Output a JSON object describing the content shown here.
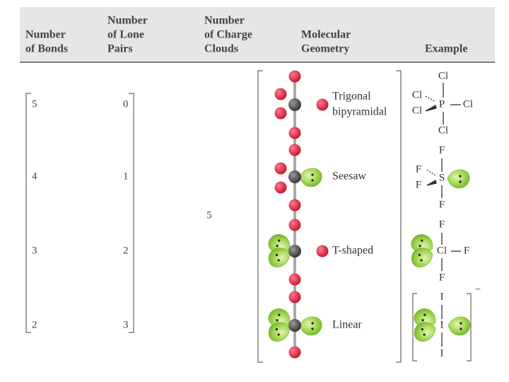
{
  "header": {
    "columns": [
      [
        "Number",
        "of Bonds"
      ],
      [
        "Number",
        "of Lone",
        "Pairs"
      ],
      [
        "Number",
        "of Charge",
        "Clouds"
      ],
      [
        "Molecular",
        "Geometry"
      ],
      [
        "Example"
      ]
    ]
  },
  "table": {
    "rows": [
      {
        "bonds": "5",
        "lone_pairs": "0",
        "geometry": [
          "Trigonal",
          "bipyramidal"
        ],
        "example": {
          "central": "P",
          "ligands": [
            "Cl",
            "Cl",
            "Cl",
            "Cl",
            "Cl"
          ]
        }
      },
      {
        "bonds": "4",
        "lone_pairs": "1",
        "geometry": [
          "Seesaw"
        ],
        "example": {
          "central": "S",
          "ligands": [
            "F",
            "F",
            "F",
            "F"
          ]
        }
      },
      {
        "bonds": "3",
        "lone_pairs": "2",
        "geometry": [
          "T-shaped"
        ],
        "example": {
          "central": "Cl",
          "ligands": [
            "F",
            "F",
            "F"
          ]
        }
      },
      {
        "bonds": "2",
        "lone_pairs": "3",
        "geometry": [
          "Linear"
        ],
        "example": {
          "central": "I",
          "ligands": [
            "I",
            "I"
          ],
          "charge": "−"
        }
      }
    ],
    "charge_clouds": "5"
  }
}
